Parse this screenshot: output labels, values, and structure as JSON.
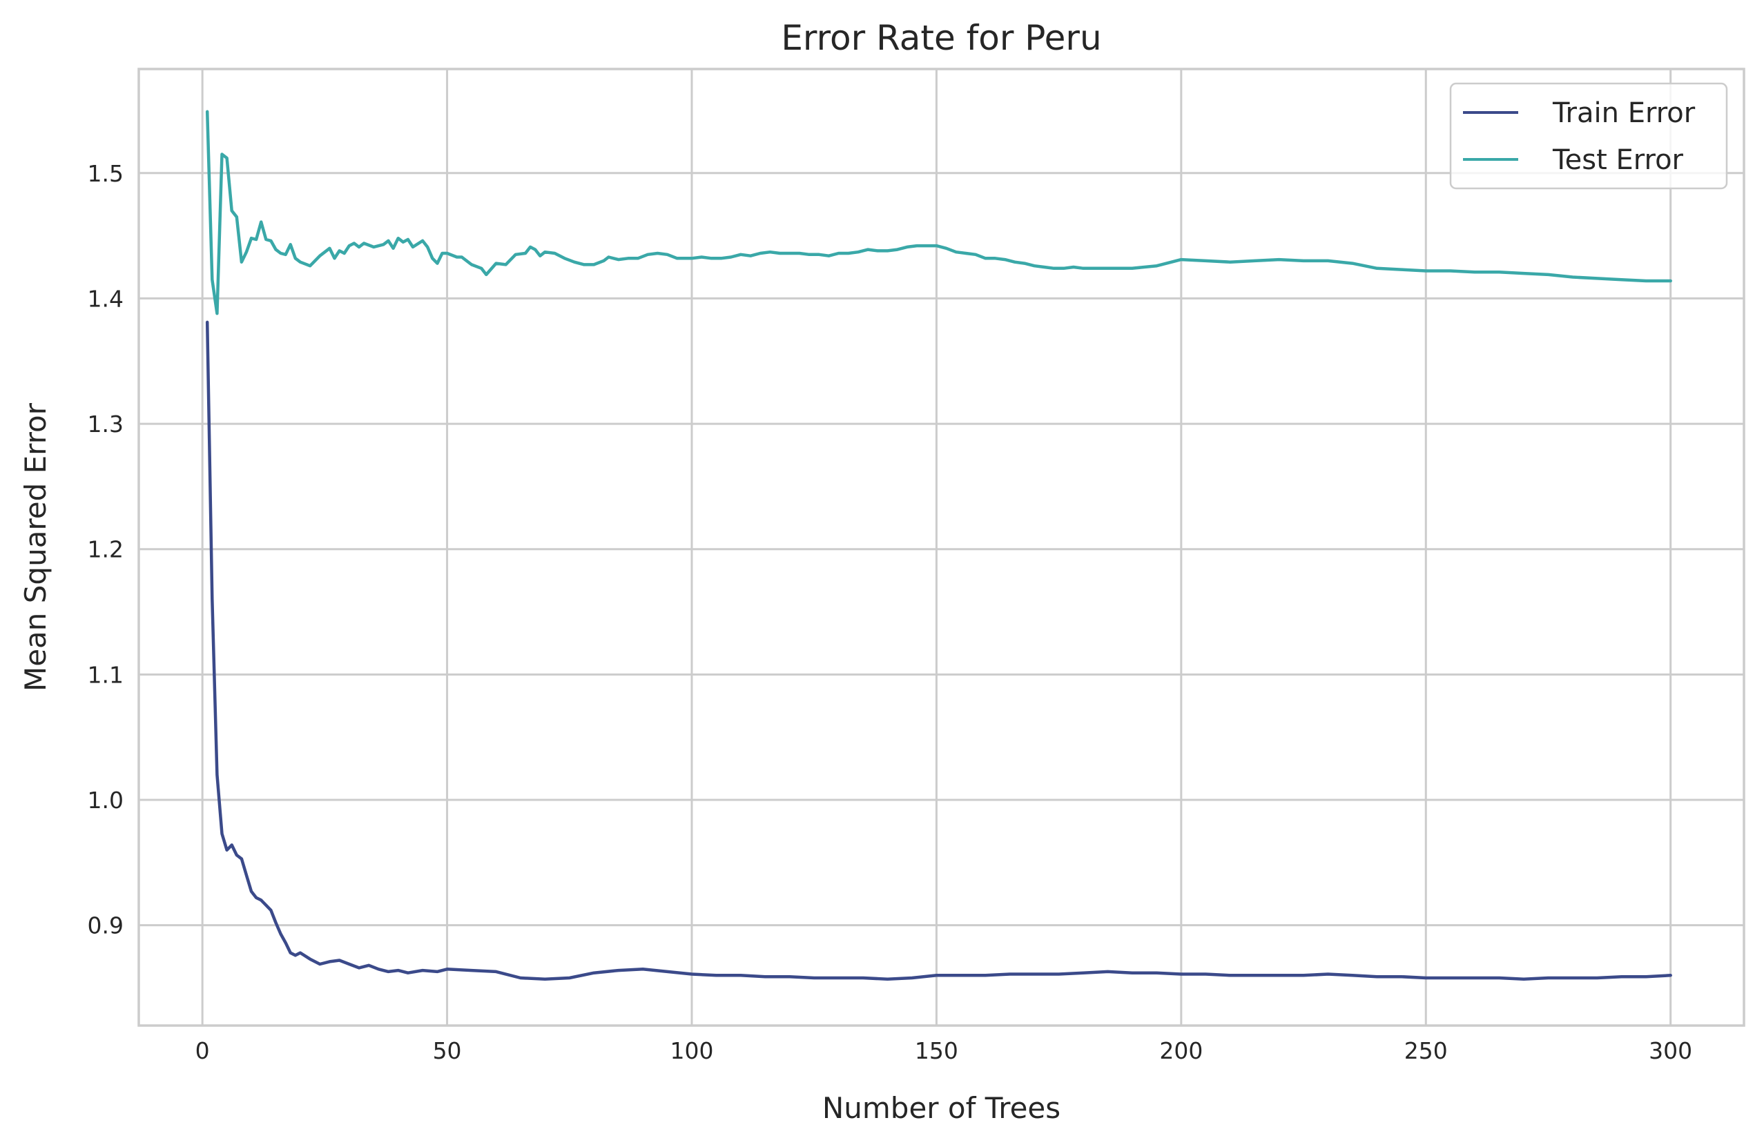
{
  "chart_data": {
    "type": "line",
    "title": "Error Rate for Peru",
    "xlabel": "Number of Trees",
    "ylabel": "Mean Squared Error",
    "xlim": [
      -13,
      315
    ],
    "ylim": [
      0.82,
      1.583
    ],
    "xticks": [
      0,
      50,
      100,
      150,
      200,
      250,
      300
    ],
    "xtick_labels": [
      "0",
      "50",
      "100",
      "150",
      "200",
      "250",
      "300"
    ],
    "yticks": [
      0.9,
      1.0,
      1.1,
      1.2,
      1.3,
      1.4,
      1.5
    ],
    "ytick_labels": [
      "0.9",
      "1.0",
      "1.1",
      "1.2",
      "1.3",
      "1.4",
      "1.5"
    ],
    "grid": true,
    "legend_position": "top-right",
    "series": [
      {
        "name": "Train Error",
        "color": "#3b4a8a",
        "points": [
          [
            1,
            1.381
          ],
          [
            2,
            1.16
          ],
          [
            3,
            1.02
          ],
          [
            4,
            0.973
          ],
          [
            5,
            0.96
          ],
          [
            6,
            0.964
          ],
          [
            7,
            0.956
          ],
          [
            8,
            0.953
          ],
          [
            9,
            0.94
          ],
          [
            10,
            0.927
          ],
          [
            11,
            0.922
          ],
          [
            12,
            0.92
          ],
          [
            13,
            0.916
          ],
          [
            14,
            0.912
          ],
          [
            15,
            0.902
          ],
          [
            16,
            0.893
          ],
          [
            17,
            0.886
          ],
          [
            18,
            0.878
          ],
          [
            19,
            0.876
          ],
          [
            20,
            0.878
          ],
          [
            22,
            0.873
          ],
          [
            24,
            0.869
          ],
          [
            26,
            0.871
          ],
          [
            28,
            0.872
          ],
          [
            30,
            0.869
          ],
          [
            32,
            0.866
          ],
          [
            34,
            0.868
          ],
          [
            36,
            0.865
          ],
          [
            38,
            0.863
          ],
          [
            40,
            0.864
          ],
          [
            42,
            0.862
          ],
          [
            45,
            0.864
          ],
          [
            48,
            0.863
          ],
          [
            50,
            0.865
          ],
          [
            55,
            0.864
          ],
          [
            60,
            0.863
          ],
          [
            65,
            0.858
          ],
          [
            70,
            0.857
          ],
          [
            75,
            0.858
          ],
          [
            80,
            0.862
          ],
          [
            85,
            0.864
          ],
          [
            90,
            0.865
          ],
          [
            95,
            0.863
          ],
          [
            100,
            0.861
          ],
          [
            105,
            0.86
          ],
          [
            110,
            0.86
          ],
          [
            115,
            0.859
          ],
          [
            120,
            0.859
          ],
          [
            125,
            0.858
          ],
          [
            130,
            0.858
          ],
          [
            135,
            0.858
          ],
          [
            140,
            0.857
          ],
          [
            145,
            0.858
          ],
          [
            150,
            0.86
          ],
          [
            155,
            0.86
          ],
          [
            160,
            0.86
          ],
          [
            165,
            0.861
          ],
          [
            170,
            0.861
          ],
          [
            175,
            0.861
          ],
          [
            180,
            0.862
          ],
          [
            185,
            0.863
          ],
          [
            190,
            0.862
          ],
          [
            195,
            0.862
          ],
          [
            200,
            0.861
          ],
          [
            205,
            0.861
          ],
          [
            210,
            0.86
          ],
          [
            215,
            0.86
          ],
          [
            220,
            0.86
          ],
          [
            225,
            0.86
          ],
          [
            230,
            0.861
          ],
          [
            235,
            0.86
          ],
          [
            240,
            0.859
          ],
          [
            245,
            0.859
          ],
          [
            250,
            0.858
          ],
          [
            255,
            0.858
          ],
          [
            260,
            0.858
          ],
          [
            265,
            0.858
          ],
          [
            270,
            0.857
          ],
          [
            275,
            0.858
          ],
          [
            280,
            0.858
          ],
          [
            285,
            0.858
          ],
          [
            290,
            0.859
          ],
          [
            295,
            0.859
          ],
          [
            300,
            0.86
          ]
        ]
      },
      {
        "name": "Test Error",
        "color": "#3aa8a8",
        "points": [
          [
            1,
            1.549
          ],
          [
            2,
            1.415
          ],
          [
            3,
            1.388
          ],
          [
            4,
            1.515
          ],
          [
            5,
            1.512
          ],
          [
            6,
            1.47
          ],
          [
            7,
            1.465
          ],
          [
            8,
            1.429
          ],
          [
            9,
            1.437
          ],
          [
            10,
            1.448
          ],
          [
            11,
            1.447
          ],
          [
            12,
            1.461
          ],
          [
            13,
            1.447
          ],
          [
            14,
            1.446
          ],
          [
            15,
            1.439
          ],
          [
            16,
            1.436
          ],
          [
            17,
            1.435
          ],
          [
            18,
            1.443
          ],
          [
            19,
            1.432
          ],
          [
            20,
            1.429
          ],
          [
            22,
            1.426
          ],
          [
            24,
            1.434
          ],
          [
            26,
            1.44
          ],
          [
            27,
            1.432
          ],
          [
            28,
            1.438
          ],
          [
            29,
            1.436
          ],
          [
            30,
            1.442
          ],
          [
            31,
            1.444
          ],
          [
            32,
            1.441
          ],
          [
            33,
            1.444
          ],
          [
            35,
            1.441
          ],
          [
            37,
            1.443
          ],
          [
            38,
            1.446
          ],
          [
            39,
            1.44
          ],
          [
            40,
            1.448
          ],
          [
            41,
            1.445
          ],
          [
            42,
            1.447
          ],
          [
            43,
            1.441
          ],
          [
            45,
            1.446
          ],
          [
            46,
            1.441
          ],
          [
            47,
            1.432
          ],
          [
            48,
            1.428
          ],
          [
            49,
            1.436
          ],
          [
            50,
            1.436
          ],
          [
            52,
            1.433
          ],
          [
            53,
            1.433
          ],
          [
            55,
            1.427
          ],
          [
            57,
            1.424
          ],
          [
            58,
            1.419
          ],
          [
            60,
            1.428
          ],
          [
            62,
            1.427
          ],
          [
            64,
            1.435
          ],
          [
            66,
            1.436
          ],
          [
            67,
            1.441
          ],
          [
            68,
            1.439
          ],
          [
            69,
            1.434
          ],
          [
            70,
            1.437
          ],
          [
            72,
            1.436
          ],
          [
            74,
            1.432
          ],
          [
            76,
            1.429
          ],
          [
            78,
            1.427
          ],
          [
            80,
            1.427
          ],
          [
            82,
            1.43
          ],
          [
            83,
            1.433
          ],
          [
            85,
            1.431
          ],
          [
            87,
            1.432
          ],
          [
            89,
            1.432
          ],
          [
            91,
            1.435
          ],
          [
            93,
            1.436
          ],
          [
            95,
            1.435
          ],
          [
            97,
            1.432
          ],
          [
            100,
            1.432
          ],
          [
            102,
            1.433
          ],
          [
            104,
            1.432
          ],
          [
            106,
            1.432
          ],
          [
            108,
            1.433
          ],
          [
            110,
            1.435
          ],
          [
            112,
            1.434
          ],
          [
            114,
            1.436
          ],
          [
            116,
            1.437
          ],
          [
            118,
            1.436
          ],
          [
            120,
            1.436
          ],
          [
            122,
            1.436
          ],
          [
            124,
            1.435
          ],
          [
            126,
            1.435
          ],
          [
            128,
            1.434
          ],
          [
            130,
            1.436
          ],
          [
            132,
            1.436
          ],
          [
            134,
            1.437
          ],
          [
            136,
            1.439
          ],
          [
            138,
            1.438
          ],
          [
            140,
            1.438
          ],
          [
            142,
            1.439
          ],
          [
            144,
            1.441
          ],
          [
            146,
            1.442
          ],
          [
            148,
            1.442
          ],
          [
            150,
            1.442
          ],
          [
            152,
            1.44
          ],
          [
            154,
            1.437
          ],
          [
            156,
            1.436
          ],
          [
            158,
            1.435
          ],
          [
            160,
            1.432
          ],
          [
            162,
            1.432
          ],
          [
            164,
            1.431
          ],
          [
            166,
            1.429
          ],
          [
            168,
            1.428
          ],
          [
            170,
            1.426
          ],
          [
            172,
            1.425
          ],
          [
            174,
            1.424
          ],
          [
            176,
            1.424
          ],
          [
            178,
            1.425
          ],
          [
            180,
            1.424
          ],
          [
            185,
            1.424
          ],
          [
            190,
            1.424
          ],
          [
            195,
            1.426
          ],
          [
            200,
            1.431
          ],
          [
            205,
            1.43
          ],
          [
            210,
            1.429
          ],
          [
            215,
            1.43
          ],
          [
            220,
            1.431
          ],
          [
            225,
            1.43
          ],
          [
            230,
            1.43
          ],
          [
            235,
            1.428
          ],
          [
            240,
            1.424
          ],
          [
            245,
            1.423
          ],
          [
            250,
            1.422
          ],
          [
            255,
            1.422
          ],
          [
            260,
            1.421
          ],
          [
            265,
            1.421
          ],
          [
            270,
            1.42
          ],
          [
            275,
            1.419
          ],
          [
            280,
            1.417
          ],
          [
            285,
            1.416
          ],
          [
            290,
            1.415
          ],
          [
            295,
            1.414
          ],
          [
            300,
            1.414
          ]
        ]
      }
    ]
  }
}
